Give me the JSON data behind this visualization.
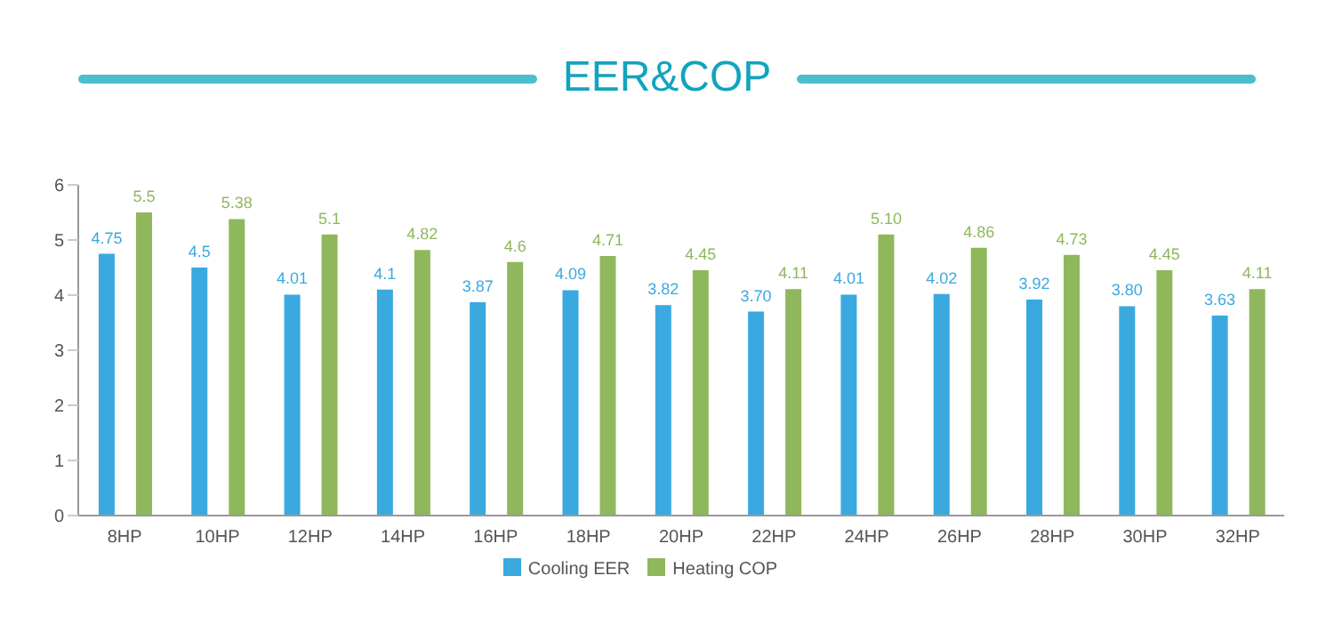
{
  "chart_data": {
    "type": "bar",
    "title": "EER&COP",
    "categories": [
      "8HP",
      "10HP",
      "12HP",
      "14HP",
      "16HP",
      "18HP",
      "20HP",
      "22HP",
      "24HP",
      "26HP",
      "28HP",
      "30HP",
      "32HP"
    ],
    "series": [
      {
        "name": "Cooling EER",
        "color": "#3aa9e0",
        "values": [
          4.75,
          4.5,
          4.01,
          4.1,
          3.87,
          4.09,
          3.82,
          3.7,
          4.01,
          4.02,
          3.92,
          3.8,
          3.63
        ],
        "value_labels": [
          "4.75",
          "4.5",
          "4.01",
          "4.1",
          "3.87",
          "4.09",
          "3.82",
          "3.70",
          "4.01",
          "4.02",
          "3.92",
          "3.80",
          "3.63"
        ]
      },
      {
        "name": "Heating COP",
        "color": "#8fb85c",
        "values": [
          5.5,
          5.38,
          5.1,
          4.82,
          4.6,
          4.71,
          4.45,
          4.11,
          5.1,
          4.86,
          4.73,
          4.45,
          4.11
        ],
        "value_labels": [
          "5.5",
          "5.38",
          "5.1",
          "4.82",
          "4.6",
          "4.71",
          "4.45",
          "4.11",
          "5.10",
          "4.86",
          "4.73",
          "4.45",
          "4.11"
        ]
      }
    ],
    "ylim": [
      0,
      6
    ],
    "yticks": [
      0,
      1,
      2,
      3,
      4,
      5,
      6
    ],
    "grid": false,
    "legend": "bottom"
  }
}
